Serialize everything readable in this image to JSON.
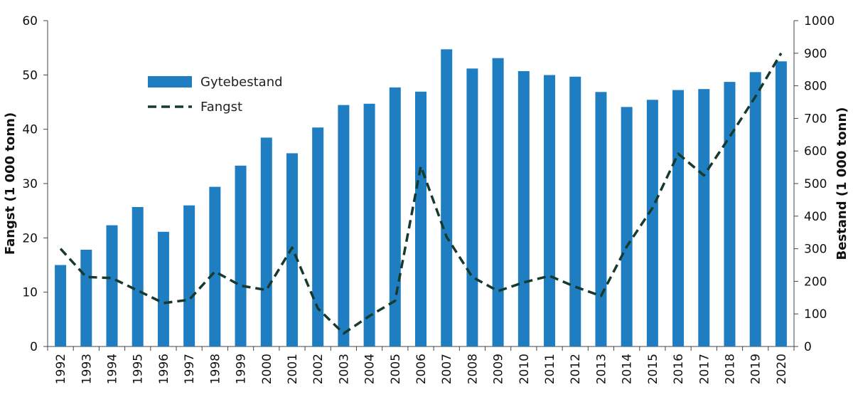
{
  "chart_data": {
    "type": "bar+line",
    "title": "",
    "categories": [
      "1992",
      "1993",
      "1994",
      "1995",
      "1996",
      "1997",
      "1998",
      "1999",
      "2000",
      "2001",
      "2002",
      "2003",
      "2004",
      "2005",
      "2006",
      "2007",
      "2008",
      "2009",
      "2010",
      "2011",
      "2012",
      "2013",
      "2014",
      "2015",
      "2016",
      "2017",
      "2018",
      "2019",
      "2020"
    ],
    "series": [
      {
        "name": "Gytebestand",
        "type": "bar",
        "axis": "right",
        "color": "#1f7ec2",
        "values": [
          250,
          297,
          372,
          428,
          352,
          433,
          490,
          555,
          641,
          593,
          672,
          741,
          745,
          795,
          782,
          912,
          853,
          885,
          845,
          833,
          828,
          781,
          735,
          757,
          787,
          790,
          812,
          842,
          875
        ]
      },
      {
        "name": "Fangst",
        "type": "line",
        "axis": "left",
        "color": "#163a2e",
        "style": "dashed",
        "values": [
          18,
          12.8,
          12.6,
          10.3,
          8,
          8.6,
          13.8,
          11.2,
          10.4,
          18.2,
          7,
          2.4,
          5.6,
          8.4,
          33.2,
          20.2,
          12.8,
          10.2,
          11.8,
          13,
          11,
          9.3,
          18.4,
          25.5,
          35.5,
          31.5,
          38.6,
          46,
          54
        ]
      }
    ],
    "y_left": {
      "label": "Fangst (1 000 tonn)",
      "min": 0,
      "max": 60,
      "ticks": [
        "0",
        "10",
        "20",
        "30",
        "40",
        "50",
        "60"
      ]
    },
    "y_right": {
      "label": "Bestand (1 000 tonn)",
      "min": 0,
      "max": 1000,
      "ticks": [
        "0",
        "100",
        "200",
        "300",
        "400",
        "500",
        "600",
        "700",
        "800",
        "900",
        "1000"
      ]
    },
    "legend": [
      {
        "label": "Gytebestand",
        "kind": "bar"
      },
      {
        "label": "Fangst",
        "kind": "dashed-line"
      }
    ],
    "legend_position": "top-left",
    "grid": false
  }
}
